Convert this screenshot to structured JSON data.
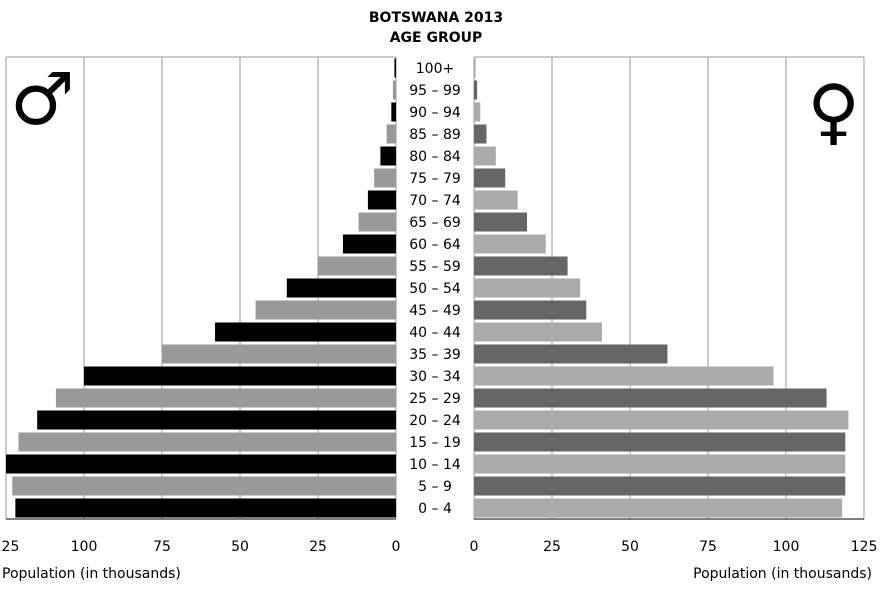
{
  "chart_data": {
    "type": "bar",
    "orientation": "horizontal",
    "layout": "population-pyramid",
    "title_lines": [
      "BOTSWANA 2013",
      "AGE GROUP"
    ],
    "categories": [
      "0 – 4",
      "5 – 9",
      "10 – 14",
      "15 – 19",
      "20 – 24",
      "25 – 29",
      "30 – 34",
      "35 – 39",
      "40 – 44",
      "45 – 49",
      "50 – 54",
      "55 – 59",
      "60 – 64",
      "65 – 69",
      "70 – 74",
      "75 – 79",
      "80 – 84",
      "85 – 89",
      "90 – 94",
      "95 – 99",
      "100+"
    ],
    "series": [
      {
        "name": "",
        "symbol": "♂",
        "side": "left",
        "colors": [
          "#000000",
          "#999999"
        ],
        "values": [
          122,
          123,
          125,
          121,
          115,
          109,
          100,
          75,
          58,
          45,
          35,
          25,
          17,
          12,
          9,
          7,
          5,
          3,
          1.5,
          1,
          0.5
        ]
      },
      {
        "name": "",
        "symbol": "♀",
        "side": "right",
        "colors": [
          "#aaaaaa",
          "#666666"
        ],
        "values": [
          118,
          119,
          119,
          119,
          120,
          113,
          96,
          62,
          41,
          36,
          34,
          30,
          23,
          17,
          14,
          10,
          7,
          4,
          2,
          1,
          0.5
        ]
      }
    ],
    "xlabel_left": "Population (in thousands)",
    "xlabel_right": "Population (in thousands)",
    "xlim": [
      0,
      125
    ],
    "ticks": [
      125,
      100,
      75,
      50,
      25,
      0
    ],
    "grid": true
  }
}
